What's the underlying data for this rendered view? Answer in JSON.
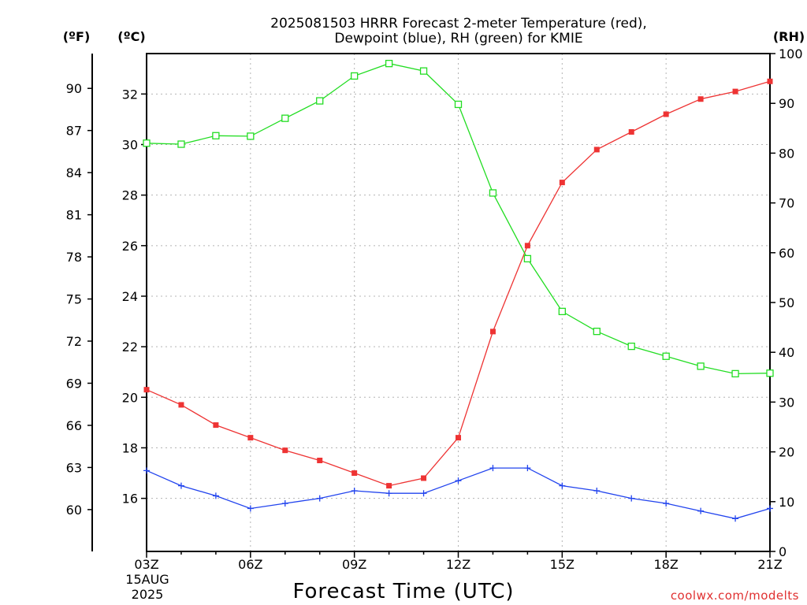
{
  "title_line1": "2025081503 HRRR Forecast 2-meter Temperature (red),",
  "title_line2": "Dewpoint (blue), RH (green) for KMIE",
  "units": {
    "f": "(ºF)",
    "c": "(ºC)",
    "rh": "(RH)"
  },
  "xlabel": "Forecast Time (UTC)",
  "date_label": {
    "day": "15AUG",
    "year": "2025"
  },
  "credit": "coolwx.com/modelts",
  "colors": {
    "temperature": "#ee3333",
    "dewpoint": "#2244ee",
    "rh": "#22dd22",
    "grid": "#b4b4b4",
    "credit": "#e03030"
  },
  "chart_data": {
    "type": "line",
    "grid": true,
    "x": [
      "03Z",
      "04Z",
      "05Z",
      "06Z",
      "07Z",
      "08Z",
      "09Z",
      "10Z",
      "11Z",
      "12Z",
      "13Z",
      "14Z",
      "15Z",
      "16Z",
      "17Z",
      "18Z",
      "19Z",
      "20Z",
      "21Z"
    ],
    "x_tick_labels": [
      "03Z",
      "06Z",
      "09Z",
      "12Z",
      "15Z",
      "18Z",
      "21Z"
    ],
    "y_c_range": [
      13.9,
      33.6
    ],
    "y_c_ticks": [
      "16",
      "18",
      "20",
      "22",
      "24",
      "26",
      "28",
      "30",
      "32"
    ],
    "y_f_ticks": [
      "60",
      "63",
      "66",
      "69",
      "72",
      "75",
      "78",
      "81",
      "84",
      "87",
      "90"
    ],
    "y_rh_range": [
      0,
      100
    ],
    "y_rh_ticks": [
      "0",
      "10",
      "20",
      "30",
      "40",
      "50",
      "60",
      "70",
      "80",
      "90",
      "100"
    ],
    "series": [
      {
        "name": "Temperature",
        "axis": "c",
        "marker": "filled-square",
        "color": "#ee3333",
        "values": [
          20.3,
          19.7,
          18.9,
          18.4,
          17.9,
          17.5,
          17.0,
          16.5,
          16.8,
          18.4,
          22.6,
          26.0,
          28.5,
          29.8,
          30.5,
          31.2,
          31.8,
          32.1,
          32.5
        ]
      },
      {
        "name": "Dewpoint",
        "axis": "c",
        "marker": "plus",
        "color": "#2244ee",
        "values": [
          17.1,
          16.5,
          16.1,
          15.6,
          15.8,
          16.0,
          16.3,
          16.2,
          16.2,
          16.7,
          17.2,
          17.2,
          16.5,
          16.3,
          16.0,
          15.8,
          15.5,
          15.2,
          15.6
        ]
      },
      {
        "name": "RH",
        "axis": "rh",
        "marker": "open-square",
        "color": "#22dd22",
        "values": [
          82,
          81.8,
          83.5,
          83.4,
          87,
          90.5,
          95.5,
          98,
          96.5,
          89.8,
          72,
          58.8,
          48.2,
          44.2,
          41.2,
          39.2,
          37.2,
          35.7,
          35.8
        ]
      }
    ]
  }
}
